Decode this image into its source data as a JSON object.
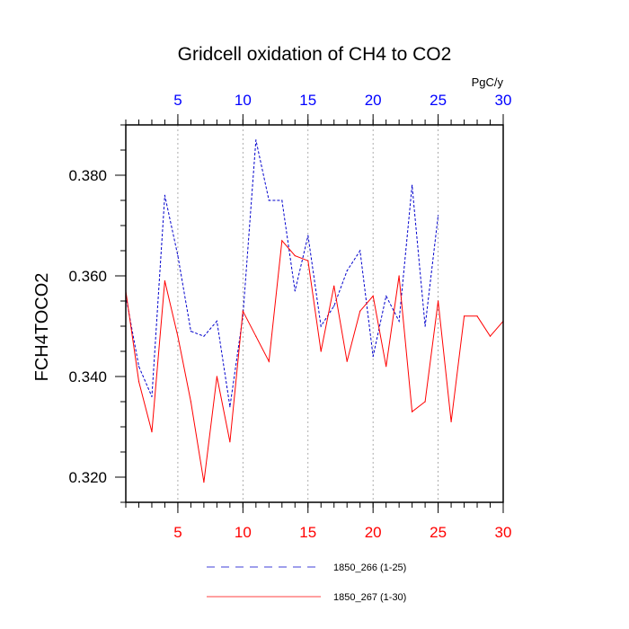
{
  "chart_data": {
    "type": "line",
    "title": "Gridcell oxidation of CH4 to CO2",
    "ylabel": "FCH4TOCO2",
    "units_label": "PgC/y",
    "xlim": [
      1,
      30
    ],
    "ylim": [
      0.315,
      0.39
    ],
    "bottom_ticks": [
      5,
      10,
      15,
      20,
      25,
      30
    ],
    "top_ticks": [
      5,
      10,
      15,
      20,
      25,
      30
    ],
    "y_ticks": [
      "0.320",
      "0.340",
      "0.360",
      "0.380"
    ],
    "y_tick_values": [
      0.32,
      0.34,
      0.36,
      0.38
    ],
    "bottom_axis_color": "#ff0000",
    "top_axis_color": "#0000ff",
    "grid_x": [
      5,
      10,
      15,
      20,
      25
    ],
    "series": [
      {
        "name": "1850_266 (1-25)",
        "color": "#0000cc",
        "style": "dashed",
        "x": [
          1,
          2,
          3,
          4,
          5,
          6,
          7,
          8,
          9,
          10,
          11,
          12,
          13,
          14,
          15,
          16,
          17,
          18,
          19,
          20,
          21,
          22,
          23,
          24,
          25
        ],
        "values": [
          0.356,
          0.342,
          0.336,
          0.376,
          0.364,
          0.349,
          0.348,
          0.351,
          0.334,
          0.352,
          0.387,
          0.375,
          0.375,
          0.357,
          0.368,
          0.35,
          0.354,
          0.361,
          0.365,
          0.344,
          0.356,
          0.351,
          0.378,
          0.35,
          0.372
        ]
      },
      {
        "name": "1850_267 (1-30)",
        "color": "#ff0000",
        "style": "solid",
        "x": [
          1,
          2,
          3,
          4,
          5,
          6,
          7,
          8,
          9,
          10,
          11,
          12,
          13,
          14,
          15,
          16,
          17,
          18,
          19,
          20,
          21,
          22,
          23,
          24,
          25,
          26,
          27,
          28,
          29,
          30
        ],
        "values": [
          0.357,
          0.339,
          0.329,
          0.359,
          0.348,
          0.335,
          0.319,
          0.34,
          0.327,
          0.353,
          0.348,
          0.343,
          0.367,
          0.364,
          0.363,
          0.345,
          0.358,
          0.343,
          0.353,
          0.356,
          0.342,
          0.36,
          0.333,
          0.335,
          0.355,
          0.331,
          0.352,
          0.352,
          0.348,
          0.351
        ]
      }
    ],
    "legend_position": "bottom"
  }
}
